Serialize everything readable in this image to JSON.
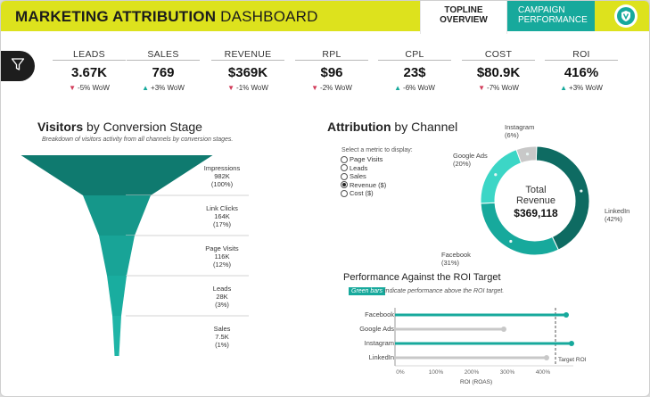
{
  "header": {
    "title_bold": "MARKETING ATTRIBUTION",
    "title_light": "DASHBOARD",
    "tabs": [
      {
        "line1": "TOPLINE",
        "line2": "OVERVIEW"
      },
      {
        "line1": "CAMPAIGN",
        "line2": "PERFORMANCE"
      }
    ],
    "logo_icon": "shield-leaf-icon"
  },
  "filter": {
    "icon": "filter-icon"
  },
  "kpis": [
    {
      "label": "LEADS",
      "value": "3.67K",
      "direction": "down",
      "change": "-5% WoW"
    },
    {
      "label": "SALES",
      "value": "769",
      "direction": "up",
      "change": "+3% WoW"
    },
    {
      "label": "REVENUE",
      "value": "$369K",
      "direction": "down",
      "change": "-1% WoW"
    },
    {
      "label": "RPL",
      "value": "$96",
      "direction": "down",
      "change": "-2% WoW"
    },
    {
      "label": "CPL",
      "value": "23$",
      "direction": "up",
      "change": "-6% WoW"
    },
    {
      "label": "COST",
      "value": "$80.9K",
      "direction": "down",
      "change": "-7% WoW"
    },
    {
      "label": "ROI",
      "value": "416%",
      "direction": "up",
      "change": "+3% WoW"
    }
  ],
  "visitors": {
    "title_bold": "Visitors",
    "title_light": " by Conversion Stage",
    "subtitle": "Breakdown of visitors activity from all channels by conversion stages.",
    "stages": [
      {
        "name": "Impressions",
        "value": "982K",
        "pct": "(100%)",
        "share": 1.0
      },
      {
        "name": "Link Clicks",
        "value": "164K",
        "pct": "(17%)",
        "share": 0.17
      },
      {
        "name": "Page Visits",
        "value": "116K",
        "pct": "(12%)",
        "share": 0.12
      },
      {
        "name": "Leads",
        "value": "28K",
        "pct": "(3%)",
        "share": 0.03
      },
      {
        "name": "Sales",
        "value": "7.5K",
        "pct": "(1%)",
        "share": 0.01
      }
    ]
  },
  "attribution": {
    "title_bold": "Attribution",
    "title_light": " by Channel",
    "metric_prompt": "Select a metric to display:",
    "metrics": [
      {
        "label": "Page Visits",
        "selected": false
      },
      {
        "label": "Leads",
        "selected": false
      },
      {
        "label": "Sales",
        "selected": false
      },
      {
        "label": "Revenue ($)",
        "selected": true
      },
      {
        "label": "Cost ($)",
        "selected": false
      }
    ],
    "center_line1": "Total",
    "center_line2": "Revenue",
    "center_value": "$369,118",
    "slices": [
      {
        "name": "LinkedIn",
        "pct": "(42%)",
        "share": 42,
        "color": "#0e6b62"
      },
      {
        "name": "Facebook",
        "pct": "(31%)",
        "share": 31,
        "color": "#17a99c"
      },
      {
        "name": "Google Ads",
        "pct": "(20%)",
        "share": 20,
        "color": "#3cd6c6"
      },
      {
        "name": "Instagram",
        "pct": "(6%)",
        "share": 6,
        "color": "#c8c8c8"
      }
    ]
  },
  "roi": {
    "title": "Performance Against the ROI Target",
    "legend_tag": "Green bars",
    "legend_text": "indicate performance above the ROI target.",
    "target_label": "Target ROI",
    "target": 450,
    "xlabel": "ROI (ROAS)",
    "ticks": [
      "0%",
      "100%",
      "200%",
      "300%",
      "400%"
    ],
    "xmax": 500,
    "bars": [
      {
        "name": "Facebook",
        "value": 480,
        "above": true
      },
      {
        "name": "Google Ads",
        "value": 305,
        "above": false
      },
      {
        "name": "Instagram",
        "value": 495,
        "above": true
      },
      {
        "name": "LinkedIn",
        "value": 425,
        "above": false
      }
    ]
  },
  "colors": {
    "accent": "#dde21d",
    "teal": "#17a99c",
    "down": "#d23c5a",
    "grey": "#c8c8c8"
  }
}
